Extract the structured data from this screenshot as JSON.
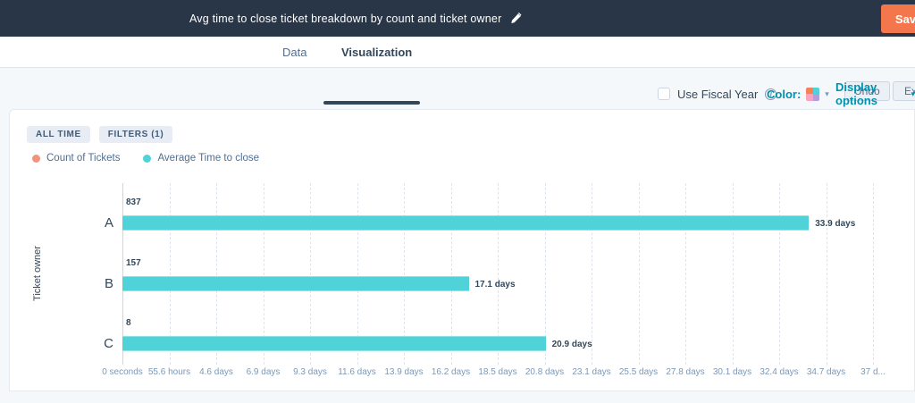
{
  "topbar": {
    "title": "Avg time to close ticket breakdown by count and ticket owner",
    "save_label": "Save"
  },
  "tabs": {
    "data": "Data",
    "visualization": "Visualization"
  },
  "toolbar": {
    "undo": "Undo",
    "export": "Export"
  },
  "controls": {
    "fiscal_label": "Use Fiscal Year",
    "color_label": "Color:",
    "display_options_label": "Display options"
  },
  "filters": {
    "all_time": "ALL TIME",
    "filters_badge": "FILTERS (1)"
  },
  "legend": {
    "items": [
      {
        "label": "Count of Tickets",
        "color": "#f2937c"
      },
      {
        "label": "Average Time to close",
        "color": "#4fd2d8"
      }
    ]
  },
  "colors": {
    "topbar_bg": "#293647",
    "save_orange": "#f4764d",
    "accent_teal": "#0091ae",
    "bar_teal": "#4fd2d8",
    "count_coral": "#f2937c",
    "swatch_colors": [
      "#f2815c",
      "#4fd2d8",
      "#f8a4c0",
      "#b39ddb"
    ]
  },
  "chart_data": {
    "type": "bar",
    "orientation": "horizontal",
    "title": "Avg time to close ticket breakdown by count and ticket owner",
    "ylabel": "Ticket owner",
    "xlabel": "",
    "categories": [
      "A",
      "B",
      "C"
    ],
    "series": [
      {
        "name": "Count of Tickets",
        "color": "#f2937c",
        "values": [
          837,
          157,
          8
        ],
        "labels": [
          "837",
          "157",
          "8"
        ]
      },
      {
        "name": "Average Time to close",
        "color": "#4fd2d8",
        "unit": "days",
        "values_days": [
          33.9,
          17.1,
          20.9
        ],
        "labels": [
          "33.9 days",
          "17.1 days",
          "20.9 days"
        ]
      }
    ],
    "x_ticks": [
      "0 seconds",
      "55.6 hours",
      "4.6 days",
      "6.9 days",
      "9.3 days",
      "11.6 days",
      "13.9 days",
      "16.2 days",
      "18.5 days",
      "20.8 days",
      "23.1 days",
      "25.5 days",
      "27.8 days",
      "30.1 days",
      "32.4 days",
      "34.7 days",
      "37 d..."
    ],
    "x_tick_interval_days": 2.3167,
    "xlim_days": [
      0,
      37.1
    ],
    "grid": "vertical-dashed",
    "legend_position": "top-left"
  }
}
